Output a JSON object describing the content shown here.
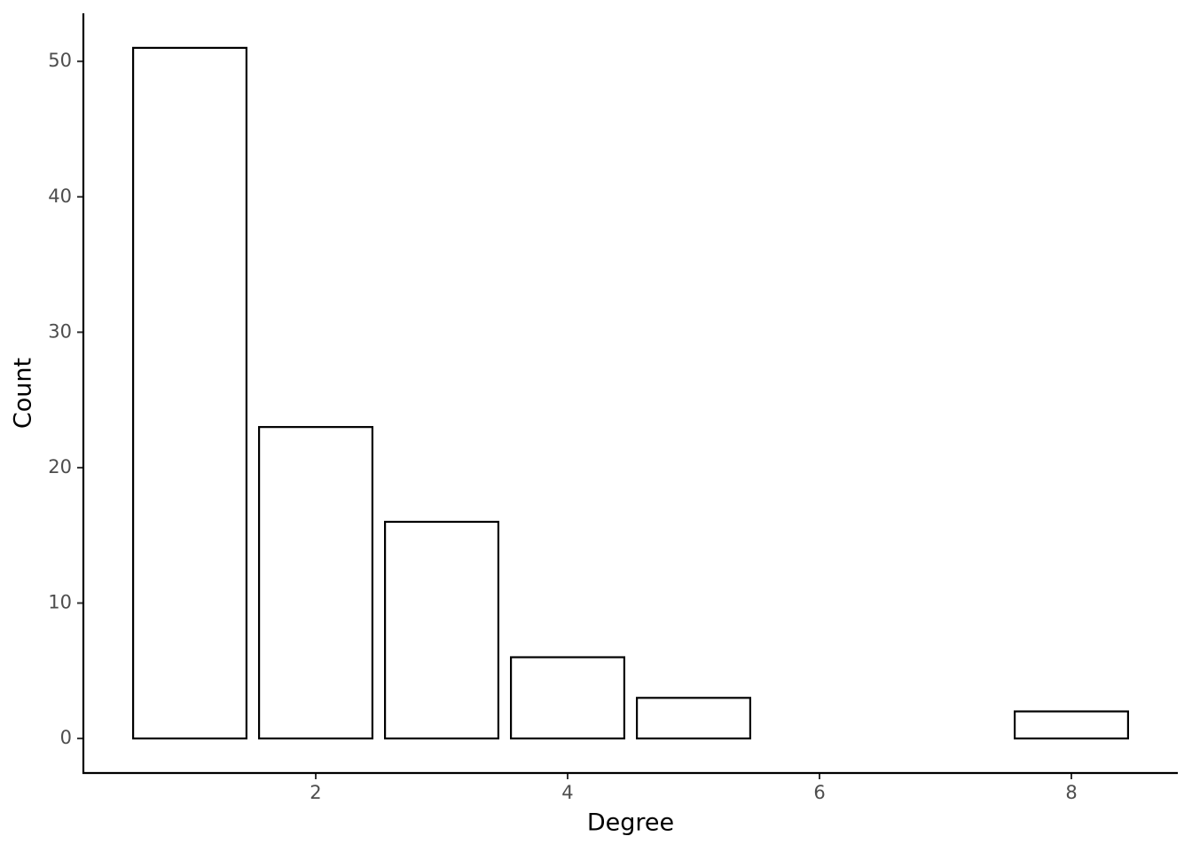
{
  "chart_data": {
    "type": "bar",
    "x_label": "Degree",
    "y_label": "Count",
    "x": [
      1,
      2,
      3,
      4,
      5,
      8
    ],
    "values": [
      51,
      23,
      16,
      6,
      3,
      2
    ],
    "color": "#ffffff",
    "edge_color": "#000000",
    "xlim": [
      0.155,
      8.845
    ],
    "xticks": [
      2,
      4,
      6,
      8
    ],
    "ylim": [
      -2.55,
      53.55
    ],
    "yticks": [
      0,
      10,
      20,
      30,
      40,
      50
    ],
    "grid": false
  }
}
